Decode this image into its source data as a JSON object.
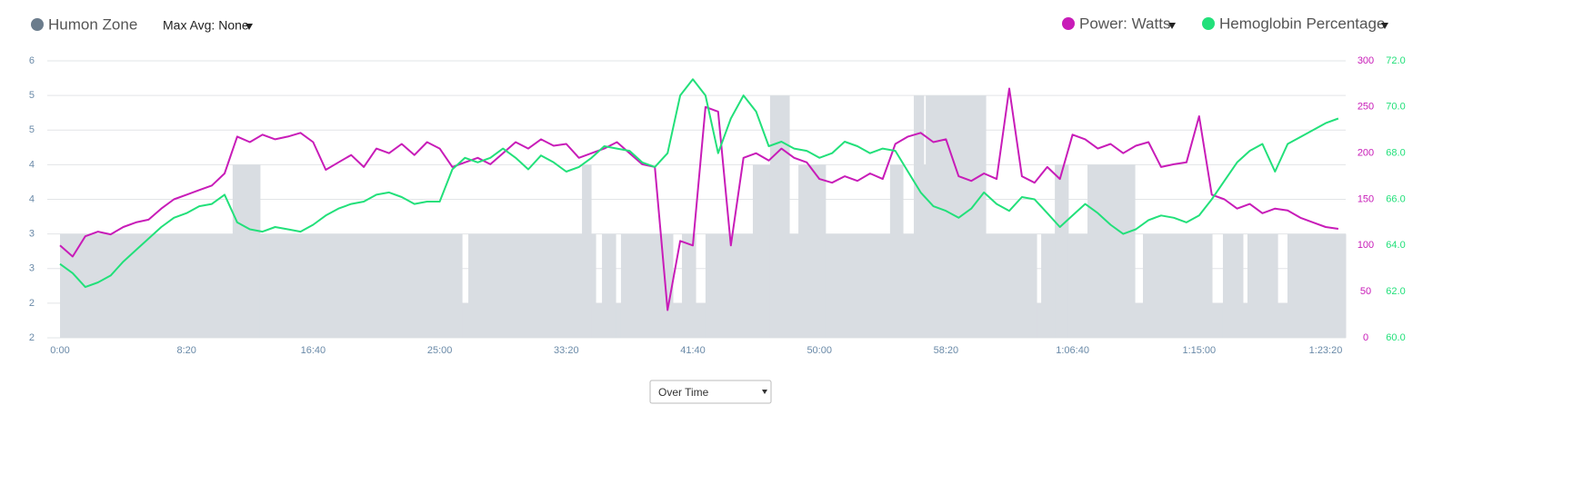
{
  "controls": {
    "max_avg": "Max Avg: None",
    "view": "Over Time"
  },
  "chart_data": {
    "type": "line",
    "x": [
      0,
      50,
      100,
      150,
      200,
      250,
      300,
      350,
      400,
      450,
      500,
      550,
      600,
      650,
      700,
      750,
      800,
      850,
      900,
      950,
      1000,
      1050,
      1100,
      1150,
      1200,
      1250,
      1300,
      1350,
      1400,
      1450,
      1500,
      1550,
      1600,
      1650,
      1700,
      1750,
      1800,
      1850,
      1900,
      1950,
      2000,
      2050,
      2100,
      2150,
      2200,
      2250,
      2300,
      2350,
      2400,
      2450,
      2500,
      2550,
      2600,
      2650,
      2700,
      2750,
      2800,
      2850,
      2900,
      2950,
      3000,
      3050,
      3100,
      3150,
      3200,
      3250,
      3300,
      3350,
      3400,
      3450,
      3500,
      3550,
      3600,
      3650,
      3700,
      3750,
      3800,
      3850,
      3900,
      3950,
      4000,
      4050,
      4100,
      4150,
      4200,
      4250,
      4300,
      4350,
      4400,
      4450,
      4500,
      4550,
      4600,
      4650,
      4700,
      4750,
      4800,
      4850,
      4900,
      4950,
      5000,
      5050
    ],
    "xlim": [
      0,
      5079
    ],
    "xticks": [
      {
        "value": 0,
        "label": "0:00"
      },
      {
        "value": 500,
        "label": "8:20"
      },
      {
        "value": 1000,
        "label": "16:40"
      },
      {
        "value": 1500,
        "label": "25:00"
      },
      {
        "value": 2000,
        "label": "33:20"
      },
      {
        "value": 2500,
        "label": "41:40"
      },
      {
        "value": 3000,
        "label": "50:00"
      },
      {
        "value": 3500,
        "label": "58:20"
      },
      {
        "value": 4000,
        "label": "1:06:40"
      },
      {
        "value": 4500,
        "label": "1:15:00"
      },
      {
        "value": 5000,
        "label": "1:23:20"
      }
    ],
    "ylim": [
      2,
      6
    ],
    "yticks": [
      2,
      {
        "value": 2.5,
        "label": "2"
      },
      3,
      {
        "value": 3.5,
        "label": "3"
      },
      4,
      {
        "value": 4.5,
        "label": "4"
      },
      5,
      {
        "value": 5.5,
        "label": "5"
      },
      6
    ],
    "y2lim": [
      0,
      300
    ],
    "y2ticks": [
      0,
      50,
      100,
      150,
      200,
      250,
      300
    ],
    "y3lim": [
      60,
      72
    ],
    "y3ticks": [
      {
        "value": 60,
        "label": "60.0"
      },
      {
        "value": 62,
        "label": "62.0"
      },
      {
        "value": 64,
        "label": "64.0"
      },
      {
        "value": 66,
        "label": "66.0"
      },
      {
        "value": 68,
        "label": "68.0"
      },
      {
        "value": 70,
        "label": "70.0"
      },
      {
        "value": 72,
        "label": "72.0"
      }
    ],
    "grid": true,
    "series": [
      {
        "name": "Humon Zone",
        "color": "#d9dde2",
        "marker_color": "#6b7c8c",
        "kind": "step-area",
        "x": [
          0,
          682,
          790,
          1588,
          1613,
          2062,
          2098,
          2116,
          2141,
          2195,
          2216,
          2421,
          2457,
          2511,
          2550,
          2737,
          2805,
          2881,
          2917,
          3024,
          3279,
          3330,
          3373,
          3412,
          3420,
          3657,
          3858,
          3876,
          3930,
          3983,
          4059,
          4246,
          4278,
          4551,
          4594,
          4673,
          4691,
          4810,
          4849,
          5079
        ],
        "values": [
          3.5,
          4.5,
          3.5,
          2.5,
          3.5,
          4.5,
          3.5,
          2.5,
          3.5,
          2.5,
          3.5,
          2.5,
          3.5,
          2.5,
          3.5,
          4.5,
          5.5,
          3.5,
          4.5,
          3.5,
          4.5,
          3.5,
          5.5,
          4.5,
          5.5,
          3.5,
          2.5,
          3.5,
          4.5,
          3.5,
          4.5,
          2.5,
          3.5,
          2.5,
          3.5,
          2.5,
          3.5,
          2.5,
          3.5,
          3.5
        ]
      },
      {
        "name": "Power: Watts",
        "color": "#c81cb8",
        "axis": "y2",
        "values": [
          100,
          88,
          110,
          115,
          112,
          120,
          125,
          128,
          140,
          150,
          155,
          160,
          165,
          178,
          218,
          212,
          220,
          215,
          218,
          222,
          212,
          182,
          190,
          198,
          185,
          205,
          200,
          210,
          198,
          212,
          205,
          185,
          190,
          195,
          188,
          200,
          212,
          205,
          215,
          208,
          210,
          195,
          200,
          205,
          212,
          200,
          188,
          185,
          30,
          105,
          100,
          250,
          245,
          100,
          195,
          200,
          192,
          205,
          195,
          190,
          172,
          168,
          175,
          170,
          178,
          172,
          210,
          218,
          222,
          212,
          215,
          175,
          170,
          178,
          172,
          270,
          175,
          168,
          185,
          172,
          220,
          215,
          205,
          210,
          200,
          208,
          212,
          185,
          188,
          190,
          240,
          155,
          150,
          140,
          145,
          135,
          140,
          138,
          130,
          125,
          120,
          118
        ]
      },
      {
        "name": "Hemoglobin Percentage",
        "color": "#22e07a",
        "axis": "y3",
        "values": [
          63.2,
          62.8,
          62.2,
          62.4,
          62.7,
          63.3,
          63.8,
          64.3,
          64.8,
          65.2,
          65.4,
          65.7,
          65.8,
          66.2,
          65.0,
          64.7,
          64.6,
          64.8,
          64.7,
          64.6,
          64.9,
          65.3,
          65.6,
          65.8,
          65.9,
          66.2,
          66.3,
          66.1,
          65.8,
          65.9,
          65.9,
          67.3,
          67.8,
          67.6,
          67.8,
          68.2,
          67.8,
          67.3,
          67.9,
          67.6,
          67.2,
          67.4,
          67.8,
          68.3,
          68.2,
          68.1,
          67.6,
          67.4,
          68.0,
          70.5,
          71.2,
          70.5,
          68.0,
          69.5,
          70.5,
          69.8,
          68.3,
          68.5,
          68.2,
          68.1,
          67.8,
          68.0,
          68.5,
          68.3,
          68.0,
          68.2,
          68.1,
          67.2,
          66.3,
          65.7,
          65.5,
          65.2,
          65.6,
          66.3,
          65.8,
          65.5,
          66.1,
          66.0,
          65.4,
          64.8,
          65.3,
          65.8,
          65.4,
          64.9,
          64.5,
          64.7,
          65.1,
          65.3,
          65.2,
          65.0,
          65.3,
          66.0,
          66.8,
          67.6,
          68.1,
          68.4,
          67.2,
          68.4,
          68.7,
          69.0,
          69.3,
          69.5
        ]
      }
    ]
  }
}
